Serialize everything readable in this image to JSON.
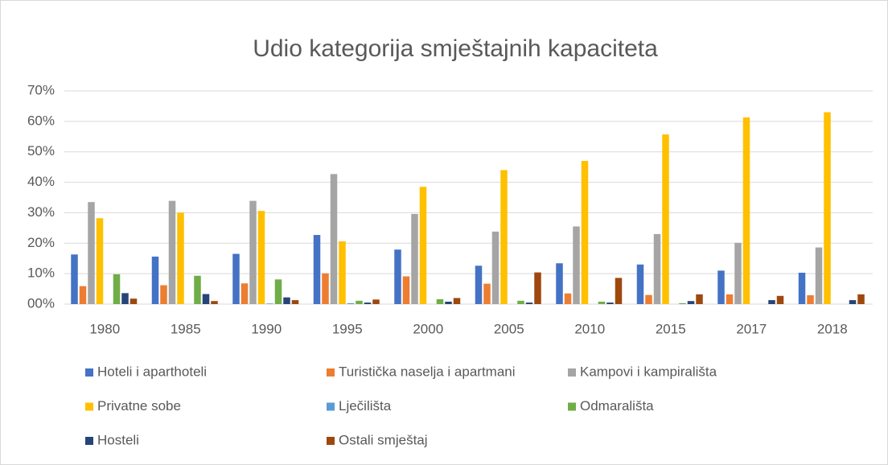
{
  "chart_data": {
    "type": "bar",
    "title": "Udio kategorija smještajnih kapaciteta",
    "categories": [
      "1980",
      "1985",
      "1990",
      "1995",
      "2000",
      "2005",
      "2010",
      "2015",
      "2017",
      "2018"
    ],
    "series": [
      {
        "name": "Hoteli i aparthoteli",
        "color": "#4472c4",
        "values": [
          16.3,
          15.6,
          16.5,
          22.7,
          17.9,
          12.6,
          13.4,
          13.0,
          11.0,
          10.3
        ]
      },
      {
        "name": "Turistička naselja i apartmani",
        "color": "#ed7d31",
        "values": [
          5.9,
          6.2,
          6.8,
          10.1,
          9.1,
          6.7,
          3.5,
          3.0,
          3.2,
          2.9
        ]
      },
      {
        "name": "Kampovi i kampirališta",
        "color": "#a5a5a5",
        "values": [
          33.5,
          33.9,
          33.9,
          42.7,
          29.6,
          23.8,
          25.5,
          23.0,
          20.1,
          18.6
        ]
      },
      {
        "name": "Privatne sobe",
        "color": "#ffc000",
        "values": [
          28.2,
          30.0,
          30.6,
          20.6,
          38.5,
          44.0,
          47.0,
          55.7,
          61.3,
          63.0
        ]
      },
      {
        "name": "Lječilišta",
        "color": "#5b9bd5",
        "values": [
          0,
          0,
          0.2,
          0.3,
          0,
          0,
          0,
          0,
          0,
          0
        ]
      },
      {
        "name": "Odmarališta",
        "color": "#70ad47",
        "values": [
          9.8,
          9.3,
          8.1,
          1.1,
          1.6,
          1.1,
          0.8,
          0.3,
          0,
          0
        ]
      },
      {
        "name": "Hosteli",
        "color": "#264478",
        "values": [
          3.6,
          3.3,
          2.2,
          0.5,
          0.8,
          0.5,
          0.5,
          1.0,
          1.3,
          1.3
        ]
      },
      {
        "name": "Ostali smještaj",
        "color": "#9e480e",
        "values": [
          1.8,
          1.0,
          1.3,
          1.5,
          2.0,
          10.4,
          8.6,
          3.2,
          2.7,
          3.2
        ]
      }
    ],
    "ylim": [
      0,
      70
    ],
    "yticks": [
      {
        "value": 0,
        "label": "00%"
      },
      {
        "value": 10,
        "label": "10%"
      },
      {
        "value": 20,
        "label": "20%"
      },
      {
        "value": 30,
        "label": "30%"
      },
      {
        "value": 40,
        "label": "40%"
      },
      {
        "value": 50,
        "label": "50%"
      },
      {
        "value": 60,
        "label": "60%"
      },
      {
        "value": 70,
        "label": "70%"
      }
    ],
    "grid": true
  }
}
